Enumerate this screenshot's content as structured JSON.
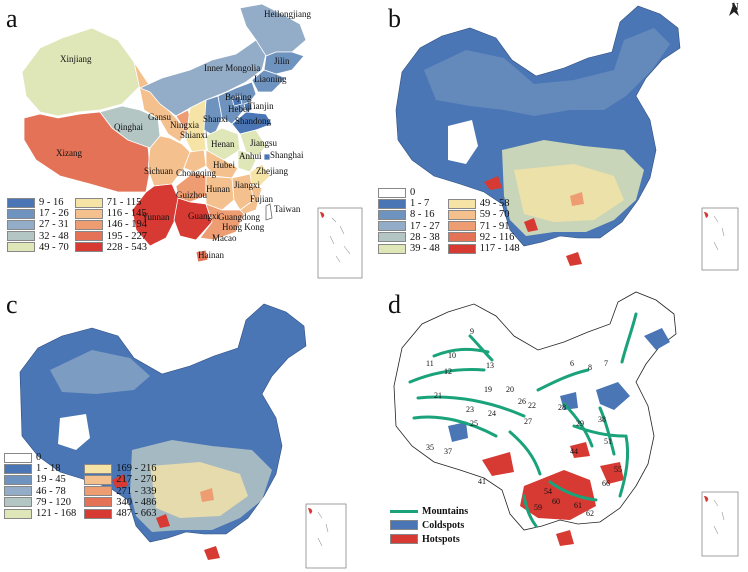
{
  "panels": [
    {
      "label": "a"
    },
    {
      "label": "b"
    },
    {
      "label": "c"
    },
    {
      "label": "d"
    }
  ],
  "north_arrow": {
    "label": "N"
  },
  "legend_a": {
    "col1": [
      {
        "range": "9 - 16",
        "color": "#4a76b5"
      },
      {
        "range": "17 - 26",
        "color": "#6f93bf"
      },
      {
        "range": "27 - 31",
        "color": "#93acc7"
      },
      {
        "range": "32 - 48",
        "color": "#b4c6c4"
      },
      {
        "range": "49 - 70",
        "color": "#dfe6b8"
      }
    ],
    "col2": [
      {
        "range": "71 - 115",
        "color": "#f6e3a6"
      },
      {
        "range": "116 - 145",
        "color": "#f4c08d"
      },
      {
        "range": "146 - 194",
        "color": "#ee9c72"
      },
      {
        "range": "195 - 227",
        "color": "#e37256"
      },
      {
        "range": "228 - 543",
        "color": "#d63a33"
      }
    ]
  },
  "legend_b": {
    "zero": {
      "range": "0",
      "color": "#ffffff"
    },
    "col1": [
      {
        "range": "1 - 7",
        "color": "#4a76b5"
      },
      {
        "range": "8 - 16",
        "color": "#6f93bf"
      },
      {
        "range": "17 - 27",
        "color": "#93acc7"
      },
      {
        "range": "28 - 38",
        "color": "#b4c6c4"
      },
      {
        "range": "39 - 48",
        "color": "#dfe6b8"
      }
    ],
    "col2": [
      {
        "range": "49 - 58",
        "color": "#f6e3a6"
      },
      {
        "range": "59 - 70",
        "color": "#f4c08d"
      },
      {
        "range": "71 - 91",
        "color": "#ee9c72"
      },
      {
        "range": "92 - 116",
        "color": "#e37256"
      },
      {
        "range": "117 - 148",
        "color": "#d63a33"
      }
    ]
  },
  "legend_c": {
    "zero": {
      "range": "0",
      "color": "#ffffff"
    },
    "col1": [
      {
        "range": "1 - 18",
        "color": "#4a76b5"
      },
      {
        "range": "19 - 45",
        "color": "#6f93bf"
      },
      {
        "range": "46 - 78",
        "color": "#93acc7"
      },
      {
        "range": "79 - 120",
        "color": "#b4c6c4"
      },
      {
        "range": "121 - 168",
        "color": "#dfe6b8"
      }
    ],
    "col2": [
      {
        "range": "169 - 216",
        "color": "#f6e3a6"
      },
      {
        "range": "217 - 270",
        "color": "#f4c08d"
      },
      {
        "range": "271 - 339",
        "color": "#ee9c72"
      },
      {
        "range": "340 - 486",
        "color": "#e37256"
      },
      {
        "range": "487 - 663",
        "color": "#d63a33"
      }
    ]
  },
  "legend_d": [
    {
      "label": "Mountains",
      "color": "#1aa37a",
      "kind": "line"
    },
    {
      "label": "Coldspots",
      "color": "#4a76b5",
      "kind": "box"
    },
    {
      "label": "Hotspots",
      "color": "#d63a33",
      "kind": "box"
    }
  ],
  "provinces": [
    {
      "name": "Heilongjiang",
      "color": "#93acc7"
    },
    {
      "name": "Jilin",
      "color": "#6f93bf"
    },
    {
      "name": "Liaoning",
      "color": "#6f93bf"
    },
    {
      "name": "Inner Mongolia",
      "color": "#93acc7"
    },
    {
      "name": "Xinjiang",
      "color": "#dfe6b8"
    },
    {
      "name": "Qinghai",
      "color": "#b4c6c4"
    },
    {
      "name": "Gansu",
      "color": "#f4c08d"
    },
    {
      "name": "Ningxia",
      "color": "#ee9c72"
    },
    {
      "name": "Beijing",
      "color": "#4a76b5"
    },
    {
      "name": "Tianjin",
      "color": "#4a76b5"
    },
    {
      "name": "Hebei",
      "color": "#6f93bf"
    },
    {
      "name": "Shanxi",
      "color": "#6f93bf"
    },
    {
      "name": "Shandong",
      "color": "#4a76b5"
    },
    {
      "name": "Shianxi",
      "color": "#f6e3a6"
    },
    {
      "name": "Henan",
      "color": "#dfe6b8"
    },
    {
      "name": "Jiangsu",
      "color": "#dfe6b8"
    },
    {
      "name": "Anhui",
      "color": "#dfe6b8"
    },
    {
      "name": "Shanghai",
      "color": "#4a76b5"
    },
    {
      "name": "Xizang",
      "color": "#e37256"
    },
    {
      "name": "Sichuan",
      "color": "#f4c08d"
    },
    {
      "name": "Chongqing",
      "color": "#f4c08d"
    },
    {
      "name": "Hubei",
      "color": "#f4c08d"
    },
    {
      "name": "Zhejiang",
      "color": "#f6e3a6"
    },
    {
      "name": "Hunan",
      "color": "#f4c08d"
    },
    {
      "name": "Jiangxi",
      "color": "#f4c08d"
    },
    {
      "name": "Guizhou",
      "color": "#ee9c72"
    },
    {
      "name": "Fujian",
      "color": "#f4c08d"
    },
    {
      "name": "Taiwan",
      "color": "#ffffff"
    },
    {
      "name": "Yunnan",
      "color": "#d63a33"
    },
    {
      "name": "Guangxi",
      "color": "#d63a33"
    },
    {
      "name": "Guangdong",
      "color": "#ee9c72"
    },
    {
      "name": "Hong Kong",
      "color": "#ee9c72"
    },
    {
      "name": "Macao",
      "color": "#ee9c72"
    },
    {
      "name": "Hainan",
      "color": "#e37256"
    }
  ],
  "mountain_labels": [
    "9",
    "10",
    "11",
    "12",
    "13",
    "19",
    "21",
    "23",
    "25",
    "24",
    "35",
    "37",
    "41",
    "6",
    "8",
    "7",
    "20",
    "26",
    "22",
    "27",
    "28",
    "29",
    "38",
    "44",
    "51",
    "54",
    "55",
    "59",
    "60",
    "61",
    "62",
    "66"
  ]
}
